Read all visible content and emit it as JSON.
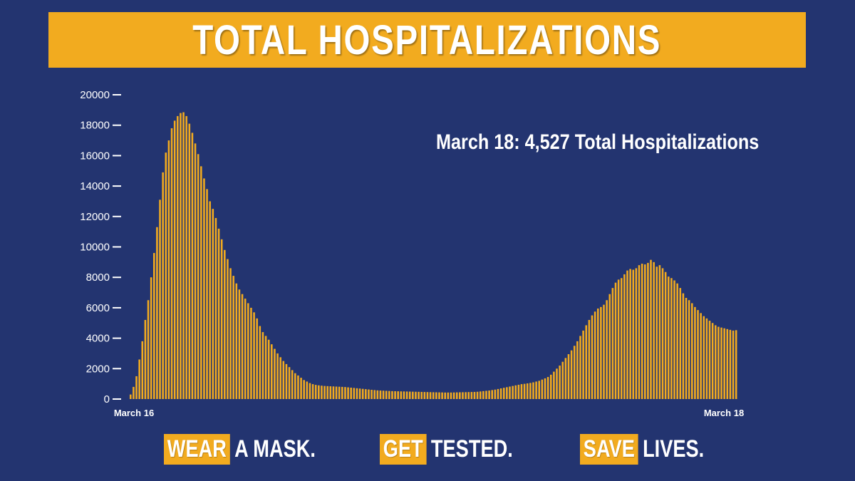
{
  "title": "TOTAL HOSPITALIZATIONS",
  "annotation": "March 18: 4,527 Total Hospitalizations",
  "colors": {
    "background": "#233470",
    "accent": "#f2ab1f",
    "bar": "#f2ab1f",
    "text": "#ffffff"
  },
  "chart_data": {
    "type": "bar",
    "x_start_label": "March 16",
    "x_end_label": "March 18",
    "ylim": [
      0,
      20000
    ],
    "y_ticks": [
      "0",
      "2000",
      "4000",
      "6000",
      "8000",
      "10000",
      "12000",
      "14000",
      "16000",
      "18000",
      "20000"
    ],
    "y_tick_values": [
      0,
      2000,
      4000,
      6000,
      8000,
      10000,
      12000,
      14000,
      16000,
      18000,
      20000
    ],
    "grid": false,
    "values": [
      300,
      800,
      1500,
      2600,
      3800,
      5200,
      6500,
      8000,
      9600,
      11300,
      13100,
      14900,
      16200,
      17000,
      17800,
      18300,
      18600,
      18800,
      18850,
      18600,
      18100,
      17500,
      16800,
      16100,
      15300,
      14500,
      13800,
      13000,
      12500,
      11900,
      11200,
      10500,
      9800,
      9200,
      8600,
      8100,
      7600,
      7200,
      6900,
      6600,
      6300,
      6000,
      5700,
      5300,
      4800,
      4400,
      4150,
      3900,
      3600,
      3300,
      3000,
      2750,
      2500,
      2300,
      2100,
      1900,
      1700,
      1550,
      1400,
      1250,
      1150,
      1050,
      980,
      930,
      900,
      880,
      860,
      850,
      840,
      830,
      820,
      810,
      800,
      790,
      770,
      750,
      730,
      710,
      690,
      670,
      650,
      630,
      610,
      590,
      570,
      560,
      550,
      540,
      530,
      520,
      515,
      510,
      505,
      500,
      495,
      490,
      485,
      480,
      475,
      470,
      465,
      460,
      455,
      450,
      445,
      440,
      435,
      430,
      430,
      430,
      435,
      440,
      445,
      450,
      455,
      460,
      465,
      470,
      480,
      500,
      520,
      540,
      560,
      590,
      620,
      660,
      700,
      740,
      780,
      820,
      860,
      900,
      940,
      980,
      1000,
      1030,
      1060,
      1100,
      1150,
      1200,
      1280,
      1360,
      1450,
      1600,
      1800,
      2000,
      2200,
      2450,
      2700,
      2950,
      3200,
      3500,
      3800,
      4150,
      4500,
      4850,
      5200,
      5500,
      5750,
      5950,
      6050,
      6200,
      6500,
      6900,
      7300,
      7650,
      7850,
      7950,
      8200,
      8450,
      8550,
      8500,
      8600,
      8800,
      8900,
      8850,
      8950,
      9150,
      9000,
      8700,
      8800,
      8600,
      8350,
      8050,
      7950,
      7800,
      7600,
      7300,
      6950,
      6650,
      6500,
      6300,
      6050,
      5850,
      5650,
      5450,
      5300,
      5150,
      5000,
      4850,
      4750,
      4700,
      4650,
      4600,
      4550,
      4500,
      4527
    ]
  },
  "footer": [
    {
      "highlight": "WEAR",
      "rest": "A MASK."
    },
    {
      "highlight": "GET",
      "rest": "TESTED."
    },
    {
      "highlight": "SAVE",
      "rest": "LIVES."
    }
  ]
}
